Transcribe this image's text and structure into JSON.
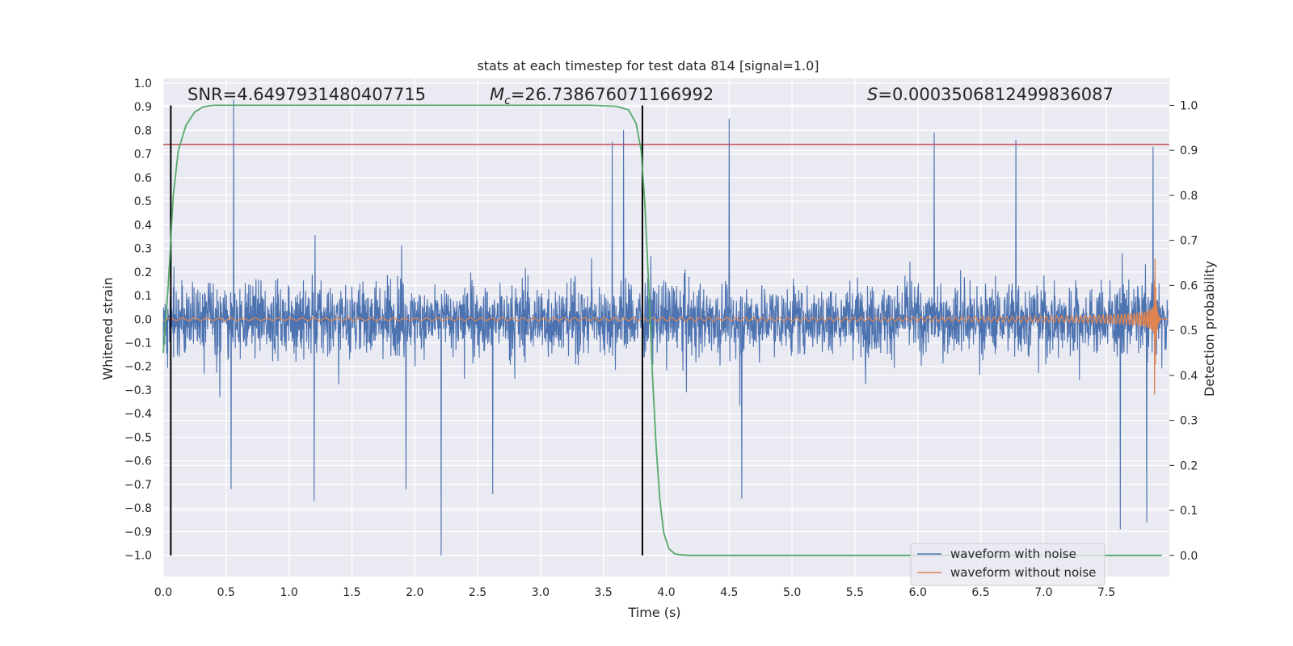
{
  "chart_data": {
    "type": "line",
    "title": "stats at each timestep for test data 814 [signal=1.0]",
    "xlabel": "Time (s)",
    "ylabel": "Whitened strain",
    "ylabel_right": "Detection probability",
    "xlim": [
      0.0,
      8.0
    ],
    "ylim": [
      -1.09,
      1.02
    ],
    "ylim_right": [
      -0.047,
      1.06
    ],
    "xticks": [
      "0.0",
      "0.5",
      "1.0",
      "1.5",
      "2.0",
      "2.5",
      "3.0",
      "3.5",
      "4.0",
      "4.5",
      "5.0",
      "5.5",
      "6.0",
      "6.5",
      "7.0",
      "7.5"
    ],
    "yticks": [
      "1.0",
      "0.9",
      "0.8",
      "0.7",
      "0.6",
      "0.5",
      "0.4",
      "0.3",
      "0.2",
      "0.1",
      "0.0",
      "-0.1",
      "-0.2",
      "-0.3",
      "-0.4",
      "-0.5",
      "-0.6",
      "-0.7",
      "-0.8",
      "-0.9",
      "-1.0"
    ],
    "yticks_right": [
      "1.0",
      "0.9",
      "0.8",
      "0.7",
      "0.6",
      "0.5",
      "0.4",
      "0.3",
      "0.2",
      "0.1",
      "0.0"
    ],
    "annotations": {
      "snr": "SNR=4.6497931480407715",
      "mc_symbol": "M",
      "mc_subscript": "c",
      "mc_value": "=26.738676071166992",
      "s_symbol": "S",
      "s_value": "=0.0003506812499836087"
    },
    "threshold": 0.74,
    "vlines": [
      0.06,
      3.81
    ],
    "series": [
      {
        "name": "waveform with noise",
        "color": "#4c72b0",
        "kind": "noise",
        "envelope": 0.3,
        "peaks": [
          {
            "x": 0.56,
            "y": 0.93
          },
          {
            "x": 2.21,
            "y": -1.0
          },
          {
            "x": 3.66,
            "y": 0.8
          },
          {
            "x": 3.57,
            "y": 0.75
          },
          {
            "x": 4.5,
            "y": 0.85
          },
          {
            "x": 6.13,
            "y": 0.79
          },
          {
            "x": 6.78,
            "y": 0.76
          },
          {
            "x": 7.87,
            "y": 0.73
          },
          {
            "x": 0.54,
            "y": -0.72
          },
          {
            "x": 1.2,
            "y": -0.77
          },
          {
            "x": 2.62,
            "y": -0.74
          },
          {
            "x": 7.61,
            "y": -0.89
          },
          {
            "x": 7.82,
            "y": -0.86
          },
          {
            "x": 4.6,
            "y": -0.76
          },
          {
            "x": 1.93,
            "y": -0.72
          }
        ]
      },
      {
        "name": "waveform without noise",
        "color": "#dd8452",
        "kind": "chirp",
        "peak_amplitude": 0.42,
        "merger_time": 7.88
      },
      {
        "name": "detection probability",
        "color": "#55a868",
        "axis": "right",
        "x": [
          0.0,
          0.04,
          0.08,
          0.12,
          0.18,
          0.25,
          0.32,
          0.4,
          1.0,
          2.0,
          3.0,
          3.4,
          3.6,
          3.7,
          3.76,
          3.8,
          3.83,
          3.86,
          3.89,
          3.92,
          3.95,
          3.98,
          4.02,
          4.07,
          4.12,
          4.2,
          5.0,
          6.0,
          7.0,
          7.94
        ],
        "y": [
          0.45,
          0.6,
          0.8,
          0.9,
          0.955,
          0.985,
          0.997,
          1.0,
          1.0,
          1.0,
          1.0,
          1.0,
          0.998,
          0.99,
          0.96,
          0.9,
          0.78,
          0.6,
          0.4,
          0.24,
          0.12,
          0.05,
          0.015,
          0.003,
          0.001,
          0.0,
          0.0,
          0.0,
          0.0,
          0.0
        ]
      }
    ],
    "legend": [
      "waveform with noise",
      "waveform without noise"
    ],
    "colors": {
      "background": "#eaeaf2",
      "grid": "#ffffff",
      "threshold": "#c44e52",
      "vline": "#000000"
    }
  }
}
